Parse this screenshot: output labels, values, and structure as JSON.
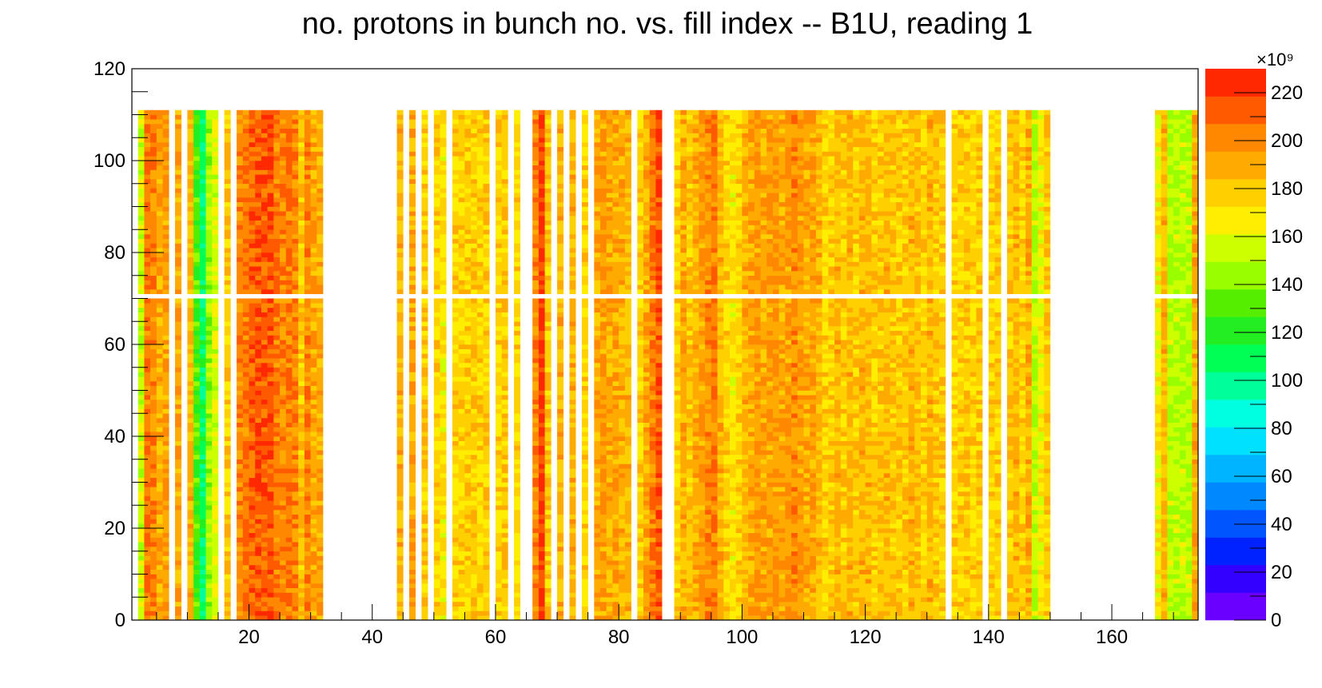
{
  "chart_data": {
    "type": "heatmap",
    "title": "no. protons in bunch no. vs. fill index -- B1U, reading 1",
    "xlabel": "",
    "ylabel": "",
    "xlim": [
      1,
      174
    ],
    "ylim": [
      0,
      120
    ],
    "x_ticks": [
      20,
      40,
      60,
      80,
      100,
      120,
      140,
      160
    ],
    "y_ticks": [
      0,
      20,
      40,
      60,
      80,
      100,
      120
    ],
    "z_ticks": [
      0,
      20,
      40,
      60,
      80,
      100,
      120,
      140,
      160,
      180,
      200,
      220
    ],
    "z_multiplier_label": "×10⁹",
    "z_unit": 1000000000.0,
    "zlim": [
      0,
      230
    ],
    "filled_bunch_range": [
      0,
      111
    ],
    "empty_bunch_row": 70,
    "colorbar_colors": [
      "#6a00ff",
      "#3300ff",
      "#0022ff",
      "#0055ff",
      "#0088ff",
      "#00b4ff",
      "#00e0ff",
      "#00ffe0",
      "#00ff9a",
      "#00ff55",
      "#22ee22",
      "#55ee00",
      "#99ff00",
      "#ccff00",
      "#ffee00",
      "#ffd000",
      "#ffaa00",
      "#ff8800",
      "#ff5a00",
      "#ff2800"
    ],
    "fill_columns": [
      {
        "x": 2,
        "level": 155
      },
      {
        "x": 3,
        "level": 205
      },
      {
        "x": 4,
        "level": 200
      },
      {
        "x": 5,
        "level": 190
      },
      {
        "x": 6,
        "level": 195
      },
      {
        "x": 8,
        "level": 190
      },
      {
        "x": 10,
        "level": 185
      },
      {
        "x": 11,
        "level": 130
      },
      {
        "x": 12,
        "level": 105
      },
      {
        "x": 13,
        "level": 145
      },
      {
        "x": 14,
        "level": 160
      },
      {
        "x": 16,
        "level": 180
      },
      {
        "x": 18,
        "level": 200
      },
      {
        "x": 19,
        "level": 205
      },
      {
        "x": 20,
        "level": 210
      },
      {
        "x": 21,
        "level": 215
      },
      {
        "x": 22,
        "level": 212
      },
      {
        "x": 23,
        "level": 215
      },
      {
        "x": 24,
        "level": 205
      },
      {
        "x": 25,
        "level": 200
      },
      {
        "x": 26,
        "level": 205
      },
      {
        "x": 27,
        "level": 200
      },
      {
        "x": 28,
        "level": 180
      },
      {
        "x": 29,
        "level": 200
      },
      {
        "x": 30,
        "level": 190
      },
      {
        "x": 31,
        "level": 190
      },
      {
        "x": 44,
        "level": 185
      },
      {
        "x": 46,
        "level": 190
      },
      {
        "x": 48,
        "level": 180
      },
      {
        "x": 50,
        "level": 175
      },
      {
        "x": 51,
        "level": 170
      },
      {
        "x": 53,
        "level": 175
      },
      {
        "x": 54,
        "level": 175
      },
      {
        "x": 55,
        "level": 178
      },
      {
        "x": 56,
        "level": 180
      },
      {
        "x": 57,
        "level": 175
      },
      {
        "x": 58,
        "level": 178
      },
      {
        "x": 60,
        "level": 175
      },
      {
        "x": 61,
        "level": 180
      },
      {
        "x": 63,
        "level": 175
      },
      {
        "x": 66,
        "level": 200
      },
      {
        "x": 67,
        "level": 220
      },
      {
        "x": 68,
        "level": 180
      },
      {
        "x": 70,
        "level": 185
      },
      {
        "x": 72,
        "level": 185
      },
      {
        "x": 74,
        "level": 175
      },
      {
        "x": 76,
        "level": 190
      },
      {
        "x": 77,
        "level": 195
      },
      {
        "x": 78,
        "level": 190
      },
      {
        "x": 79,
        "level": 192
      },
      {
        "x": 80,
        "level": 188
      },
      {
        "x": 81,
        "level": 185
      },
      {
        "x": 83,
        "level": 175
      },
      {
        "x": 84,
        "level": 190
      },
      {
        "x": 85,
        "level": 205
      },
      {
        "x": 86,
        "level": 215
      },
      {
        "x": 89,
        "level": 175
      },
      {
        "x": 90,
        "level": 190
      },
      {
        "x": 91,
        "level": 180
      },
      {
        "x": 92,
        "level": 190
      },
      {
        "x": 93,
        "level": 195
      },
      {
        "x": 94,
        "level": 200
      },
      {
        "x": 95,
        "level": 205
      },
      {
        "x": 96,
        "level": 185
      },
      {
        "x": 97,
        "level": 175
      },
      {
        "x": 98,
        "level": 170
      },
      {
        "x": 99,
        "level": 175
      },
      {
        "x": 100,
        "level": 185
      },
      {
        "x": 101,
        "level": 190
      },
      {
        "x": 102,
        "level": 195
      },
      {
        "x": 103,
        "level": 190
      },
      {
        "x": 104,
        "level": 195
      },
      {
        "x": 105,
        "level": 195
      },
      {
        "x": 106,
        "level": 190
      },
      {
        "x": 107,
        "level": 195
      },
      {
        "x": 108,
        "level": 200
      },
      {
        "x": 109,
        "level": 195
      },
      {
        "x": 110,
        "level": 190
      },
      {
        "x": 111,
        "level": 192
      },
      {
        "x": 112,
        "level": 185
      },
      {
        "x": 113,
        "level": 175
      },
      {
        "x": 114,
        "level": 178
      },
      {
        "x": 115,
        "level": 185
      },
      {
        "x": 116,
        "level": 180
      },
      {
        "x": 117,
        "level": 185
      },
      {
        "x": 118,
        "level": 180
      },
      {
        "x": 119,
        "level": 185
      },
      {
        "x": 120,
        "level": 185
      },
      {
        "x": 121,
        "level": 178
      },
      {
        "x": 122,
        "level": 180
      },
      {
        "x": 123,
        "level": 185
      },
      {
        "x": 124,
        "level": 182
      },
      {
        "x": 125,
        "level": 180
      },
      {
        "x": 126,
        "level": 178
      },
      {
        "x": 127,
        "level": 185
      },
      {
        "x": 128,
        "level": 182
      },
      {
        "x": 129,
        "level": 178
      },
      {
        "x": 130,
        "level": 185
      },
      {
        "x": 131,
        "level": 180
      },
      {
        "x": 132,
        "level": 178
      },
      {
        "x": 134,
        "level": 175
      },
      {
        "x": 135,
        "level": 178
      },
      {
        "x": 136,
        "level": 180
      },
      {
        "x": 137,
        "level": 175
      },
      {
        "x": 138,
        "level": 180
      },
      {
        "x": 140,
        "level": 175
      },
      {
        "x": 141,
        "level": 178
      },
      {
        "x": 143,
        "level": 180
      },
      {
        "x": 144,
        "level": 185
      },
      {
        "x": 145,
        "level": 175
      },
      {
        "x": 146,
        "level": 190
      },
      {
        "x": 147,
        "level": 150
      },
      {
        "x": 148,
        "level": 165
      },
      {
        "x": 149,
        "level": 180
      },
      {
        "x": 167,
        "level": 165
      },
      {
        "x": 168,
        "level": 185
      },
      {
        "x": 169,
        "level": 150
      },
      {
        "x": 170,
        "level": 150
      },
      {
        "x": 171,
        "level": 150
      },
      {
        "x": 172,
        "level": 150
      },
      {
        "x": 173,
        "level": 190
      }
    ]
  }
}
